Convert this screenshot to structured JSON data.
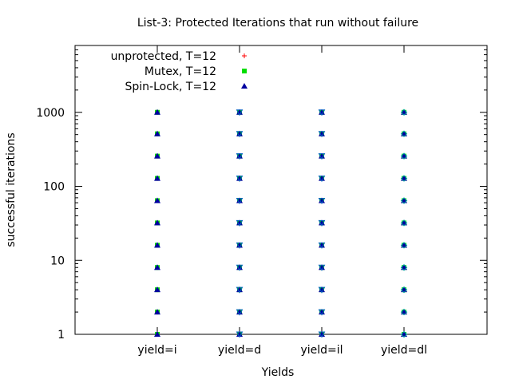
{
  "chart_data": {
    "type": "scatter",
    "title": "List-3: Protected Iterations that run without failure",
    "xlabel": "Yields",
    "ylabel": "successful iterations",
    "y_scale": "log",
    "ylim": [
      1,
      8000
    ],
    "categories": [
      "yield=i",
      "yield=d",
      "yield=il",
      "yield=dl"
    ],
    "y_ticks": [
      1,
      10,
      100,
      1000
    ],
    "y_tick_labels": [
      "1",
      "10",
      "100",
      "1000"
    ],
    "grid": false,
    "legend_position": "top-left",
    "series": [
      {
        "name": "unprotected, T=12",
        "marker": "plus",
        "color": "#ff0000",
        "points": [
          {
            "x": "yield=i",
            "y": [
              1,
              2,
              4,
              8,
              16,
              32,
              64,
              128,
              256,
              512,
              1000
            ]
          },
          {
            "x": "yield=d",
            "y": [
              1,
              2,
              4
            ]
          },
          {
            "x": "yield=il",
            "y": [
              1,
              2
            ]
          },
          {
            "x": "yield=dl",
            "y": [
              1,
              2
            ]
          }
        ]
      },
      {
        "name": "Mutex, T=12",
        "marker": "square",
        "color": "#00dd00",
        "points": [
          {
            "x": "yield=i",
            "y": [
              1,
              2,
              4,
              8,
              16,
              32,
              64,
              128,
              256,
              512,
              1000
            ]
          },
          {
            "x": "yield=d",
            "y": [
              1,
              2,
              4,
              8,
              16,
              32,
              64,
              128,
              256,
              512,
              1000
            ]
          },
          {
            "x": "yield=il",
            "y": [
              1,
              2,
              4,
              8,
              16,
              32,
              64,
              128,
              256,
              512,
              1000
            ]
          },
          {
            "x": "yield=dl",
            "y": [
              1,
              2,
              4,
              8,
              16,
              32,
              64,
              128,
              256,
              512,
              1000
            ]
          }
        ]
      },
      {
        "name": "Spin-Lock, T=12",
        "marker": "triangle-up",
        "color": "#0000a0",
        "points": [
          {
            "x": "yield=i",
            "y": [
              1,
              2,
              4,
              8,
              16,
              32,
              64,
              128,
              256,
              512,
              1000
            ]
          },
          {
            "x": "yield=d",
            "y": [
              1,
              2,
              4,
              8,
              16,
              32,
              64,
              128,
              256,
              512,
              1000
            ]
          },
          {
            "x": "yield=il",
            "y": [
              1,
              2,
              4,
              8,
              16,
              32,
              64,
              128,
              256,
              512,
              1000
            ]
          },
          {
            "x": "yield=dl",
            "y": [
              1,
              2,
              4,
              8,
              16,
              32,
              64,
              128,
              256,
              512,
              1000
            ]
          }
        ]
      },
      {
        "name": "",
        "marker": "triangle-down",
        "color": "#0060c0",
        "points": [
          {
            "x": "yield=d",
            "y": [
              1,
              2,
              4,
              8,
              16,
              32,
              64,
              128,
              256,
              512,
              1000
            ]
          },
          {
            "x": "yield=il",
            "y": [
              1,
              2,
              4,
              8,
              16,
              32,
              64,
              128,
              256,
              512,
              1000
            ]
          }
        ]
      },
      {
        "name": "",
        "marker": "diamond",
        "color": "#00a0a0",
        "points": [
          {
            "x": "yield=dl",
            "y": [
              1,
              2,
              4,
              8,
              16,
              32,
              64,
              128,
              256,
              512,
              1000
            ]
          }
        ]
      }
    ]
  }
}
